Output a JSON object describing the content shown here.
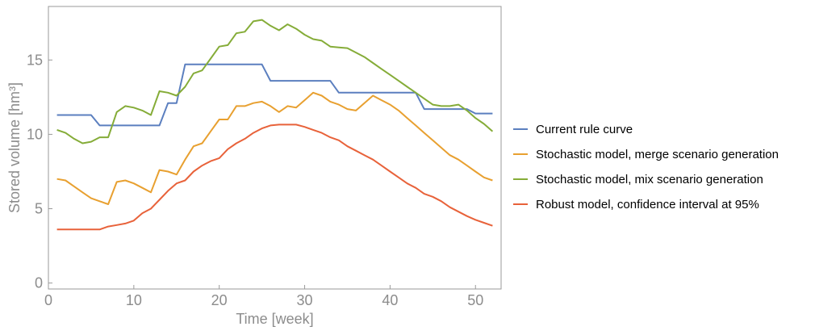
{
  "chart_data": {
    "type": "line",
    "xlabel": "Time [week]",
    "ylabel": "Stored volume [hm³]",
    "xlim": [
      0,
      53
    ],
    "ylim": [
      -0.4,
      18.6
    ],
    "xticks": [
      0,
      10,
      20,
      30,
      40,
      50
    ],
    "yticks": [
      0,
      5,
      10,
      15
    ],
    "grid": false,
    "legend_position": "right",
    "series": [
      {
        "name": "Current rule curve",
        "color": "#5b7fbf",
        "x": [
          1,
          5,
          6,
          13,
          14,
          15,
          16,
          25,
          26,
          33,
          34,
          43,
          44,
          49,
          50,
          52
        ],
        "y": [
          11.3,
          11.3,
          10.6,
          10.6,
          12.1,
          12.1,
          14.7,
          14.7,
          13.6,
          13.6,
          12.8,
          12.8,
          11.7,
          11.7,
          11.4,
          11.4
        ]
      },
      {
        "name": "Stochastic model, merge scenario generation",
        "color": "#e8a030",
        "x": [
          1,
          2,
          3,
          4,
          5,
          6,
          7,
          8,
          9,
          10,
          11,
          12,
          13,
          14,
          15,
          16,
          17,
          18,
          19,
          20,
          21,
          22,
          23,
          24,
          25,
          26,
          27,
          28,
          29,
          30,
          31,
          32,
          33,
          34,
          35,
          36,
          37,
          38,
          39,
          40,
          41,
          42,
          43,
          44,
          45,
          46,
          47,
          48,
          49,
          50,
          51,
          52
        ],
        "y": [
          7.0,
          6.9,
          6.5,
          6.1,
          5.7,
          5.5,
          5.3,
          6.8,
          6.9,
          6.7,
          6.4,
          6.1,
          7.6,
          7.5,
          7.3,
          8.3,
          9.2,
          9.4,
          10.2,
          11.0,
          11.0,
          11.9,
          11.9,
          12.1,
          12.2,
          11.9,
          11.5,
          11.9,
          11.8,
          12.3,
          12.8,
          12.6,
          12.2,
          12.0,
          11.7,
          11.6,
          12.1,
          12.6,
          12.3,
          12.0,
          11.6,
          11.1,
          10.6,
          10.1,
          9.6,
          9.1,
          8.6,
          8.3,
          7.9,
          7.5,
          7.1,
          6.9
        ]
      },
      {
        "name": "Stochastic model, mix scenario generation",
        "color": "#85ac38",
        "x": [
          1,
          2,
          3,
          4,
          5,
          6,
          7,
          8,
          9,
          10,
          11,
          12,
          13,
          14,
          15,
          16,
          17,
          18,
          19,
          20,
          21,
          22,
          23,
          24,
          25,
          26,
          27,
          28,
          29,
          30,
          31,
          32,
          33,
          34,
          35,
          36,
          37,
          38,
          39,
          40,
          41,
          42,
          43,
          44,
          45,
          46,
          47,
          48,
          49,
          50,
          51,
          52
        ],
        "y": [
          10.3,
          10.1,
          9.7,
          9.4,
          9.5,
          9.8,
          9.8,
          11.5,
          11.9,
          11.8,
          11.6,
          11.3,
          12.9,
          12.8,
          12.6,
          13.2,
          14.1,
          14.3,
          15.1,
          15.9,
          16.0,
          16.8,
          16.9,
          17.6,
          17.7,
          17.3,
          17.0,
          17.4,
          17.1,
          16.7,
          16.4,
          16.3,
          15.9,
          15.85,
          15.8,
          15.5,
          15.2,
          14.8,
          14.4,
          14.0,
          13.6,
          13.2,
          12.8,
          12.4,
          12.0,
          11.9,
          11.9,
          12.0,
          11.6,
          11.1,
          10.7,
          10.2
        ]
      },
      {
        "name": "Robust model, confidence interval at 95%",
        "color": "#e8623a",
        "x": [
          1,
          2,
          3,
          4,
          5,
          6,
          7,
          8,
          9,
          10,
          11,
          12,
          13,
          14,
          15,
          16,
          17,
          18,
          19,
          20,
          21,
          22,
          23,
          24,
          25,
          26,
          27,
          28,
          29,
          30,
          31,
          32,
          33,
          34,
          35,
          36,
          37,
          38,
          39,
          40,
          41,
          42,
          43,
          44,
          45,
          46,
          47,
          48,
          49,
          50,
          51,
          52
        ],
        "y": [
          3.6,
          3.6,
          3.6,
          3.6,
          3.6,
          3.6,
          3.8,
          3.9,
          4.0,
          4.2,
          4.7,
          5.0,
          5.6,
          6.2,
          6.7,
          6.9,
          7.5,
          7.9,
          8.2,
          8.4,
          9.0,
          9.4,
          9.7,
          10.1,
          10.4,
          10.6,
          10.65,
          10.65,
          10.65,
          10.5,
          10.3,
          10.1,
          9.8,
          9.6,
          9.2,
          8.9,
          8.6,
          8.3,
          7.9,
          7.5,
          7.1,
          6.7,
          6.4,
          6.0,
          5.8,
          5.5,
          5.1,
          4.8,
          4.5,
          4.25,
          4.05,
          3.85
        ]
      }
    ]
  }
}
